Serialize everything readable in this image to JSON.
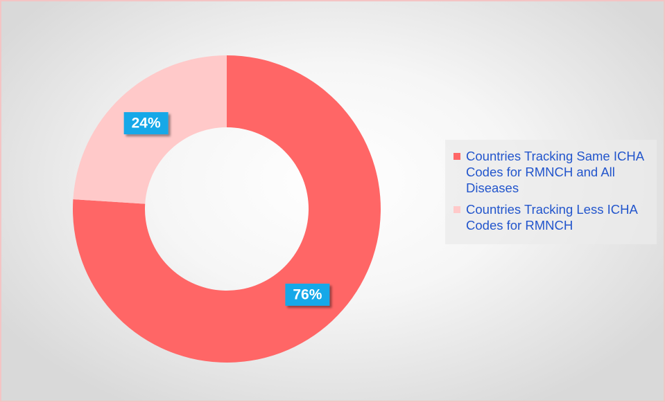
{
  "chart_data": {
    "type": "donut",
    "categories": [
      "Countries Tracking Same ICHA Codes for RMNCH and All Diseases",
      "Countries Tracking Less ICHA Codes for RMNCH"
    ],
    "values": [
      76,
      24
    ],
    "value_labels": [
      "76%",
      "24%"
    ],
    "colors": [
      "#ff6666",
      "#ffc9c9"
    ],
    "legend": "right"
  }
}
